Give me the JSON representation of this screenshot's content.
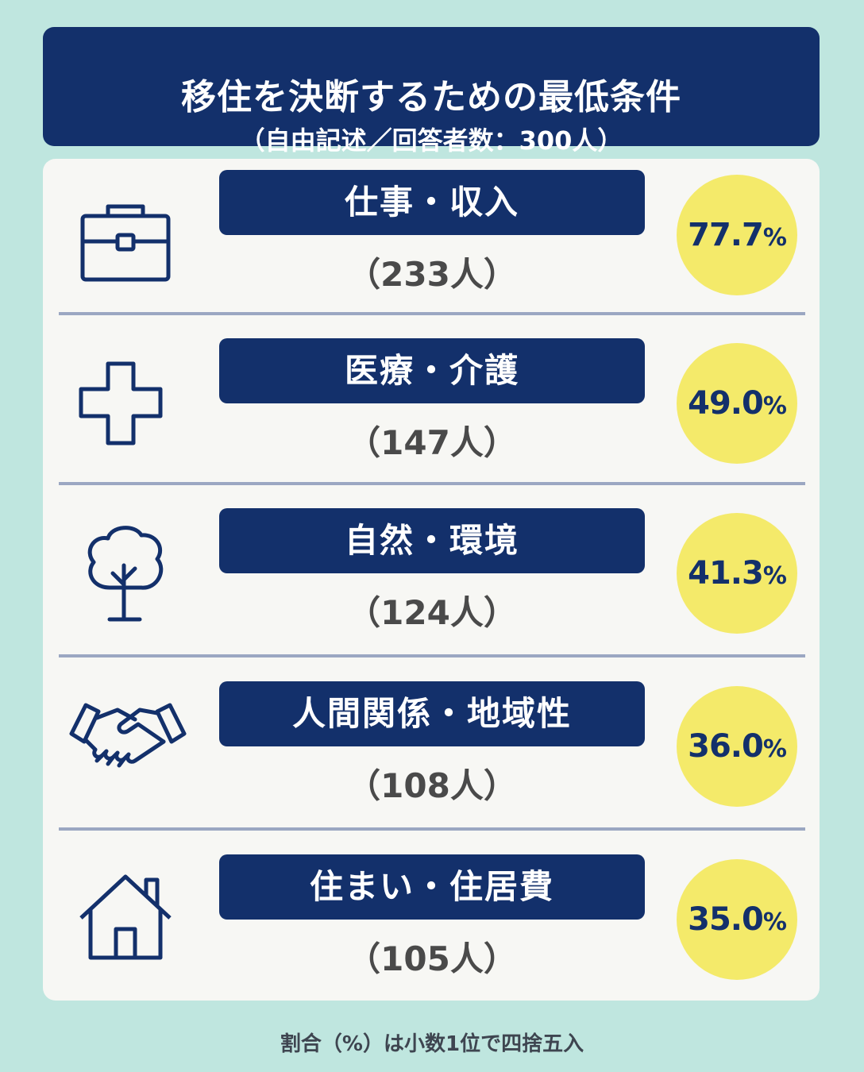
{
  "header": {
    "title": "移住を決断するための最低条件",
    "subtitle": "（自由記述／回答者数：300人）"
  },
  "items": [
    {
      "label": "仕事・収入",
      "count": "（233人）",
      "percent": "77.7",
      "unit": "%",
      "icon": "briefcase-icon"
    },
    {
      "label": "医療・介護",
      "count": "（147人）",
      "percent": "49.0",
      "unit": "%",
      "icon": "medical-cross-icon"
    },
    {
      "label": "自然・環境",
      "count": "（124人）",
      "percent": "41.3",
      "unit": "%",
      "icon": "tree-icon"
    },
    {
      "label": "人間関係・地域性",
      "count": "（108人）",
      "percent": "36.0",
      "unit": "%",
      "icon": "handshake-icon"
    },
    {
      "label": "住まい・住居費",
      "count": "（105人）",
      "percent": "35.0",
      "unit": "%",
      "icon": "house-icon"
    }
  ],
  "footnote": "割合（%）は小数1位で四捨五入",
  "colors": {
    "background": "#bfe6df",
    "navy": "#13306b",
    "circle": "#f4ea6a",
    "panel": "#f7f7f4"
  }
}
